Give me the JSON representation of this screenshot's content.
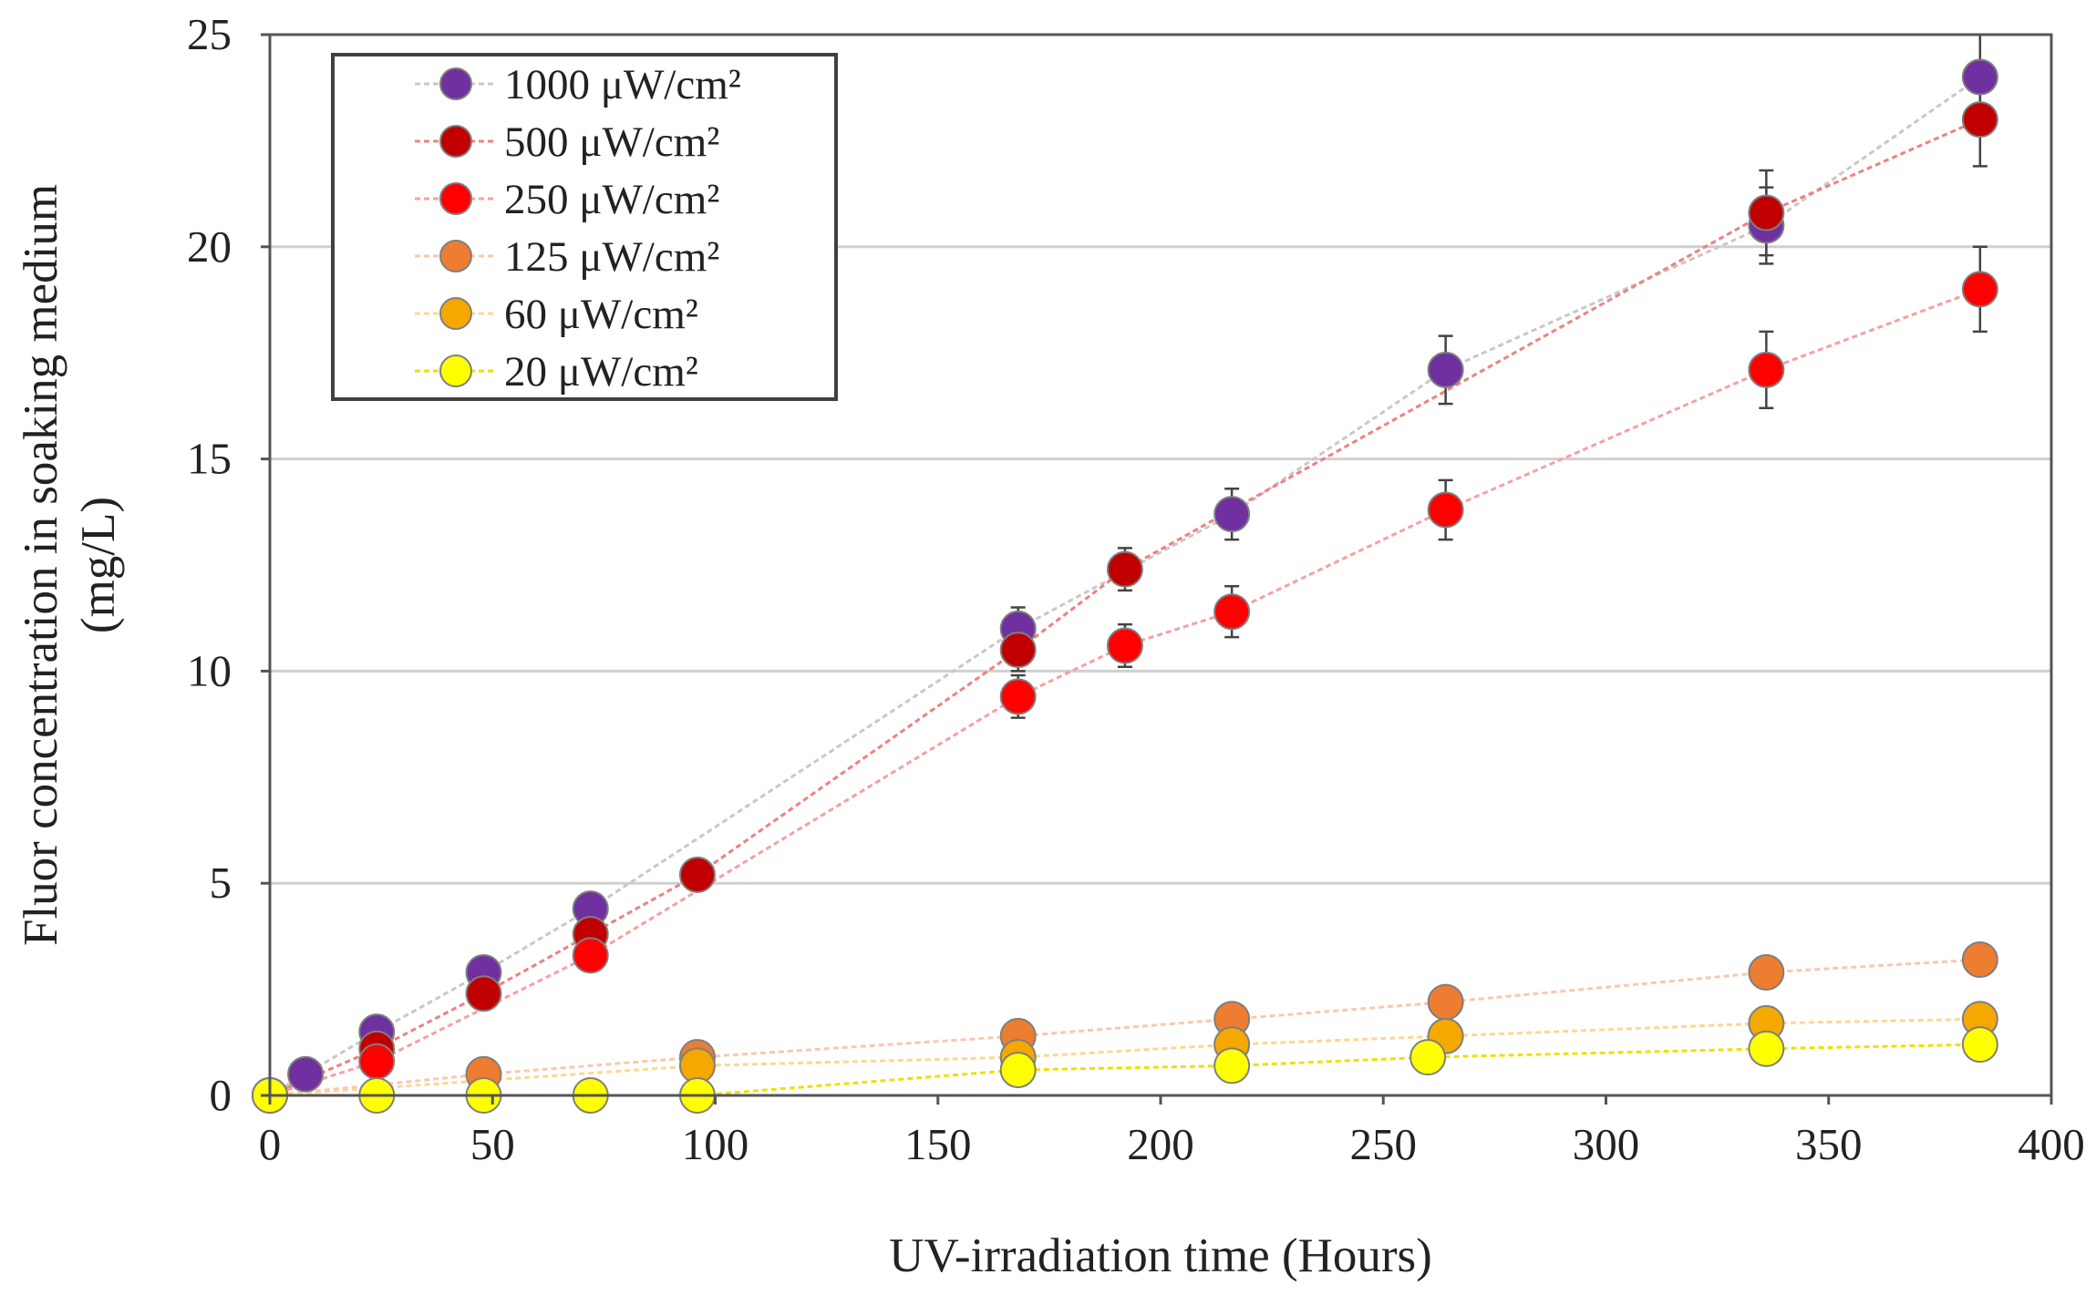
{
  "chart_data": {
    "type": "scatter",
    "title": "",
    "xlabel": "UV-irradiation time (Hours)",
    "ylabel": "Fluor concentration in soaking medium",
    "ylabel_unit": "(mg/L)",
    "xlim": [
      0,
      400
    ],
    "ylim": [
      0,
      25
    ],
    "xticks": [
      0,
      50,
      100,
      150,
      200,
      250,
      300,
      350,
      400
    ],
    "yticks": [
      0,
      5,
      10,
      15,
      20,
      25
    ],
    "grid": "horizontal",
    "legend_position": "top-left",
    "error_bars": true,
    "series": [
      {
        "name": "1000 μW/cm²",
        "color": "#7030a0",
        "line_color": "#c8c8c8",
        "x": [
          0,
          8,
          24,
          48,
          72,
          168,
          216,
          264,
          336,
          384
        ],
        "y": [
          0,
          0.5,
          1.5,
          2.9,
          4.4,
          11.0,
          13.7,
          17.1,
          20.5,
          24.0
        ],
        "err": [
          0,
          0,
          0.2,
          0.3,
          0.3,
          0.5,
          0.6,
          0.8,
          0.9,
          1.0
        ]
      },
      {
        "name": "500 μW/cm²",
        "color": "#c00000",
        "line_color": "#f08080",
        "x": [
          0,
          24,
          48,
          72,
          96,
          168,
          192,
          336,
          384
        ],
        "y": [
          0,
          1.1,
          2.4,
          3.8,
          5.2,
          10.5,
          12.4,
          20.8,
          23.0
        ],
        "err": [
          0,
          0.2,
          0.3,
          0.3,
          0.3,
          0.5,
          0.5,
          1.0,
          1.1
        ]
      },
      {
        "name": "250 μW/cm²",
        "color": "#ff0000",
        "line_color": "#f5a0a0",
        "x": [
          0,
          24,
          72,
          168,
          192,
          216,
          264,
          336,
          384
        ],
        "y": [
          0,
          0.8,
          3.3,
          9.4,
          10.6,
          11.4,
          13.8,
          17.1,
          19.0
        ],
        "err": [
          0,
          0.2,
          0.3,
          0.5,
          0.5,
          0.6,
          0.7,
          0.9,
          1.0
        ]
      },
      {
        "name": "125 μW/cm²",
        "color": "#ed7d31",
        "line_color": "#f8c8b0",
        "x": [
          0,
          48,
          96,
          168,
          216,
          264,
          336,
          384
        ],
        "y": [
          0,
          0.5,
          0.9,
          1.4,
          1.8,
          2.2,
          2.9,
          3.2
        ],
        "err": [
          0,
          0.1,
          0.1,
          0.2,
          0.2,
          0.2,
          0.3,
          0.3
        ]
      },
      {
        "name": "60 μW/cm²",
        "color": "#f5a800",
        "line_color": "#fbd890",
        "x": [
          0,
          96,
          168,
          216,
          264,
          336,
          384
        ],
        "y": [
          0,
          0.7,
          0.9,
          1.2,
          1.4,
          1.7,
          1.8
        ],
        "err": [
          0,
          0.1,
          0.1,
          0.1,
          0.1,
          0.2,
          0.2
        ]
      },
      {
        "name": "20 μW/cm²",
        "color": "#ffff00",
        "line_color": "#f0e000",
        "x": [
          0,
          24,
          48,
          72,
          96,
          168,
          216,
          260,
          336,
          384
        ],
        "y": [
          0,
          0,
          0,
          0,
          0,
          0.6,
          0.7,
          0.9,
          1.1,
          1.2
        ],
        "err": [
          0,
          0,
          0,
          0,
          0,
          0.1,
          0.1,
          0.1,
          0.1,
          0.1
        ]
      }
    ]
  }
}
